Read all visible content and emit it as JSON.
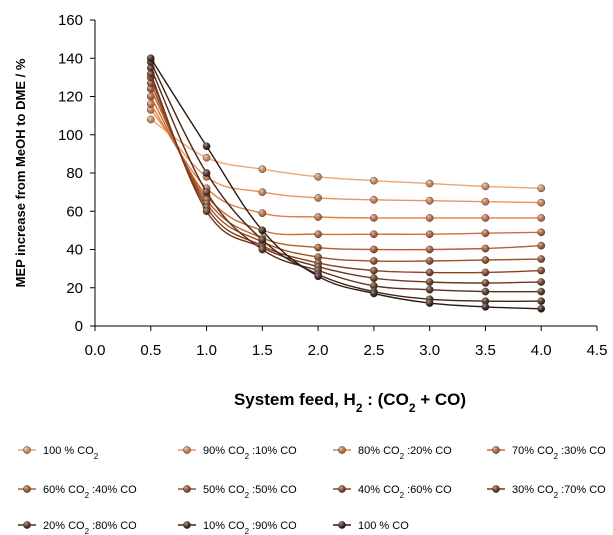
{
  "chart_data": {
    "type": "line",
    "ylabel": "MEP increase from MeOH to DME  /  %",
    "xlabel": {
      "main": "System feed,  H",
      "sub1": "2",
      "mid": " : (CO",
      "sub2": "2",
      "end": " + CO)"
    },
    "xlim": [
      0.0,
      4.5
    ],
    "ylim": [
      0,
      160
    ],
    "xticks": [
      "0.0",
      "0.5",
      "1.0",
      "1.5",
      "2.0",
      "2.5",
      "3.0",
      "3.5",
      "4.0",
      "4.5"
    ],
    "yticks": [
      "0",
      "20",
      "40",
      "60",
      "80",
      "100",
      "120",
      "140",
      "160"
    ],
    "grid": false,
    "legend_position": "bottom",
    "x": [
      0.5,
      1.0,
      1.5,
      2.0,
      2.5,
      3.0,
      3.5,
      4.0
    ],
    "series": [
      {
        "name": "100 % CO2",
        "label": {
          "a": "100 % CO",
          "s": "2",
          "b": ""
        },
        "color": "#F2A66C",
        "values": [
          108,
          88,
          82,
          78,
          76,
          74.5,
          73,
          72
        ]
      },
      {
        "name": "90% CO2 :10% CO",
        "label": {
          "a": "90% CO",
          "s": "2",
          "b": " :10% CO"
        },
        "color": "#E9955A",
        "values": [
          113,
          78,
          70,
          67,
          66,
          65.5,
          65,
          64.5
        ]
      },
      {
        "name": "80% CO2 :20% CO",
        "label": {
          "a": "80% CO",
          "s": "2",
          "b": " :20% CO"
        },
        "color": "#DC8247",
        "values": [
          116,
          72,
          59,
          57,
          56.5,
          56.5,
          56.5,
          56.5
        ]
      },
      {
        "name": "70% CO2 :30% CO",
        "label": {
          "a": "70% CO",
          "s": "2",
          "b": " :30% CO"
        },
        "color": "#C96F38",
        "values": [
          120,
          68,
          50,
          48,
          48,
          48,
          48.5,
          49
        ]
      },
      {
        "name": "60% CO2 :40% CO",
        "label": {
          "a": "60% CO",
          "s": "2",
          "b": " :40% CO"
        },
        "color": "#B5602D",
        "values": [
          124,
          66,
          46,
          41,
          40,
          40,
          40.5,
          42
        ]
      },
      {
        "name": "50% CO2 :50% CO",
        "label": {
          "a": "50% CO",
          "s": "2",
          "b": " :50% CO"
        },
        "color": "#9E5228",
        "values": [
          127,
          64,
          44,
          36,
          34,
          34,
          34.5,
          35
        ]
      },
      {
        "name": "40% CO2 :60% CO",
        "label": {
          "a": "40% CO",
          "s": "2",
          "b": " :60% CO"
        },
        "color": "#874424",
        "values": [
          130,
          62,
          42,
          33,
          29,
          28,
          28,
          29
        ]
      },
      {
        "name": "30% CO2 :70% CO",
        "label": {
          "a": "30% CO",
          "s": "2",
          "b": " :70% CO"
        },
        "color": "#6E3820",
        "values": [
          132,
          60,
          41,
          31,
          25,
          23,
          22.5,
          23
        ]
      },
      {
        "name": "20% CO2 :80% CO",
        "label": {
          "a": "20% CO",
          "s": "2",
          "b": " :80% CO"
        },
        "color": "#582D1C",
        "values": [
          135,
          70,
          40,
          29,
          21,
          19,
          18,
          18
        ]
      },
      {
        "name": "10% CO2 :90% CO",
        "label": {
          "a": "10% CO",
          "s": "2",
          "b": " :90% CO"
        },
        "color": "#432418",
        "values": [
          138,
          80,
          45,
          27,
          18,
          14,
          13,
          13
        ]
      },
      {
        "name": "100 % CO",
        "label": {
          "a": "100 % CO",
          "s": "",
          "b": ""
        },
        "color": "#2A1712",
        "values": [
          140,
          94,
          50,
          26,
          17,
          12,
          10,
          9
        ]
      }
    ]
  }
}
